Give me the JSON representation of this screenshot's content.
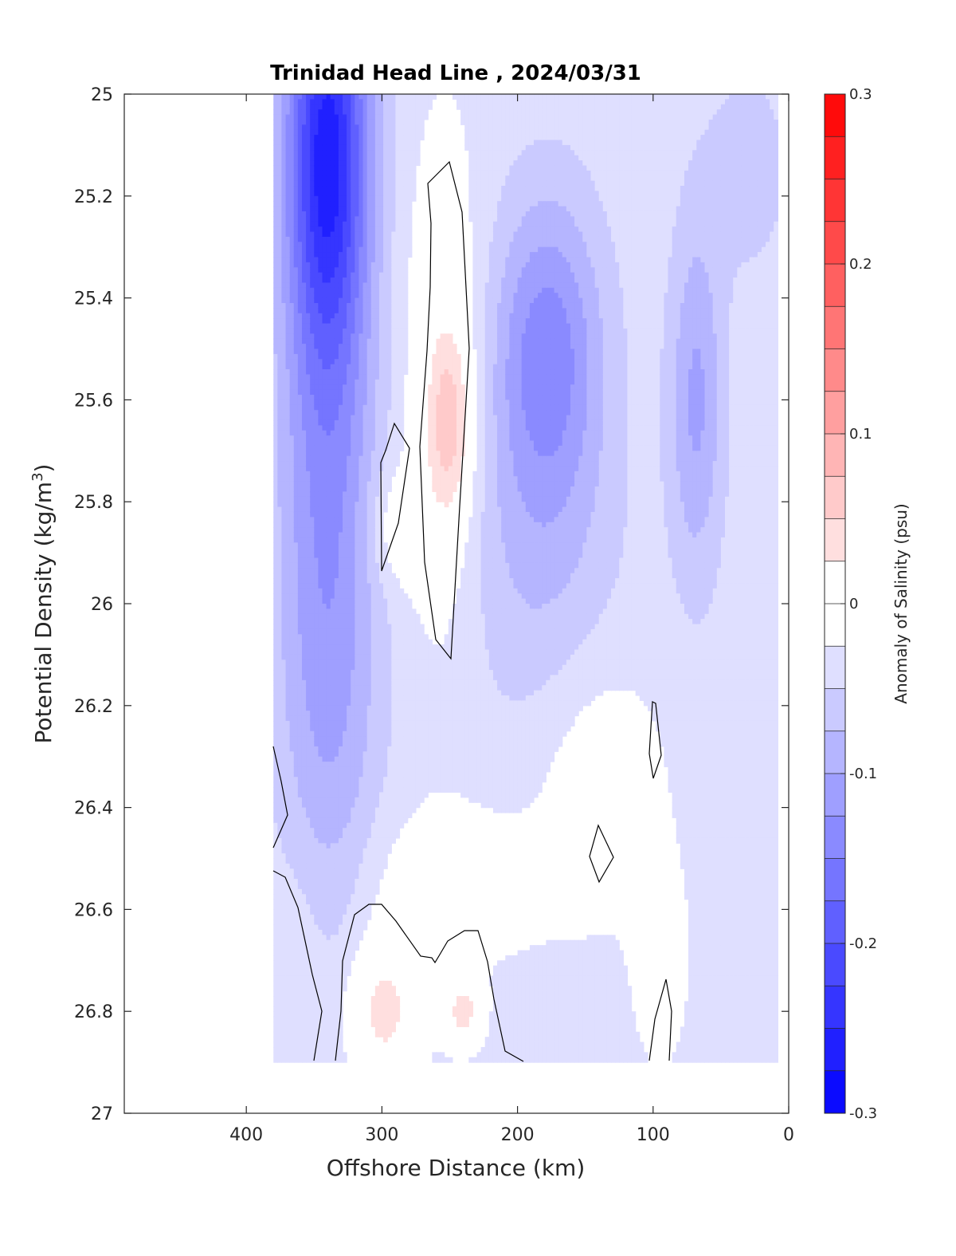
{
  "chart_data": {
    "type": "contour",
    "title": "Trinidad Head Line , 2024/03/31",
    "xlabel": "Offshore Distance (km)",
    "ylabel_main": "Potential Density (kg/m",
    "ylabel_sup": "3",
    "ylabel_close": ")",
    "xlim": [
      490,
      0
    ],
    "ylim": [
      25,
      27
    ],
    "y_reversed": true,
    "x_ticks": [
      400,
      300,
      200,
      100,
      0
    ],
    "x_tick_labels": [
      "400",
      "300",
      "200",
      "100",
      "0"
    ],
    "y_ticks": [
      25,
      25.2,
      25.4,
      25.6,
      25.8,
      26,
      26.2,
      26.4,
      26.6,
      26.8,
      27
    ],
    "y_tick_labels": [
      "25",
      "25.2",
      "25.4",
      "25.6",
      "25.8",
      "26",
      "26.2",
      "26.4",
      "26.6",
      "26.8",
      "27"
    ],
    "colorbar": {
      "label": "Anomaly of Salinity (psu)",
      "range": [
        -0.3,
        0.3
      ],
      "levels": 24,
      "ticks": [
        0.3,
        0.2,
        0.1,
        0,
        -0.1,
        -0.2,
        -0.3
      ],
      "tick_labels": [
        "0.3",
        "0.2",
        "0.1",
        "0",
        "-0.1",
        "-0.2",
        "-0.3"
      ],
      "colormap": "blue-white-red"
    },
    "zero_contour": true,
    "data_extent_x": [
      380,
      10
    ],
    "data_extent_y": [
      25,
      26.9
    ],
    "features": [
      {
        "label": "strongest negative anomaly core",
        "x": 340,
        "y": 25.1,
        "value": -0.23
      },
      {
        "label": "negative anomaly core",
        "x": 180,
        "y": 25.5,
        "value": -0.13
      },
      {
        "label": "negative anomaly core",
        "x": 70,
        "y": 25.55,
        "value": -0.1
      },
      {
        "label": "weak positive anomaly",
        "x": 250,
        "y": 25.65,
        "value": 0.03
      },
      {
        "label": "weak positive anomaly",
        "x": 300,
        "y": 26.8,
        "value": 0.03
      },
      {
        "label": "weak positive anomaly",
        "x": 240,
        "y": 26.8,
        "value": 0.03
      }
    ]
  }
}
